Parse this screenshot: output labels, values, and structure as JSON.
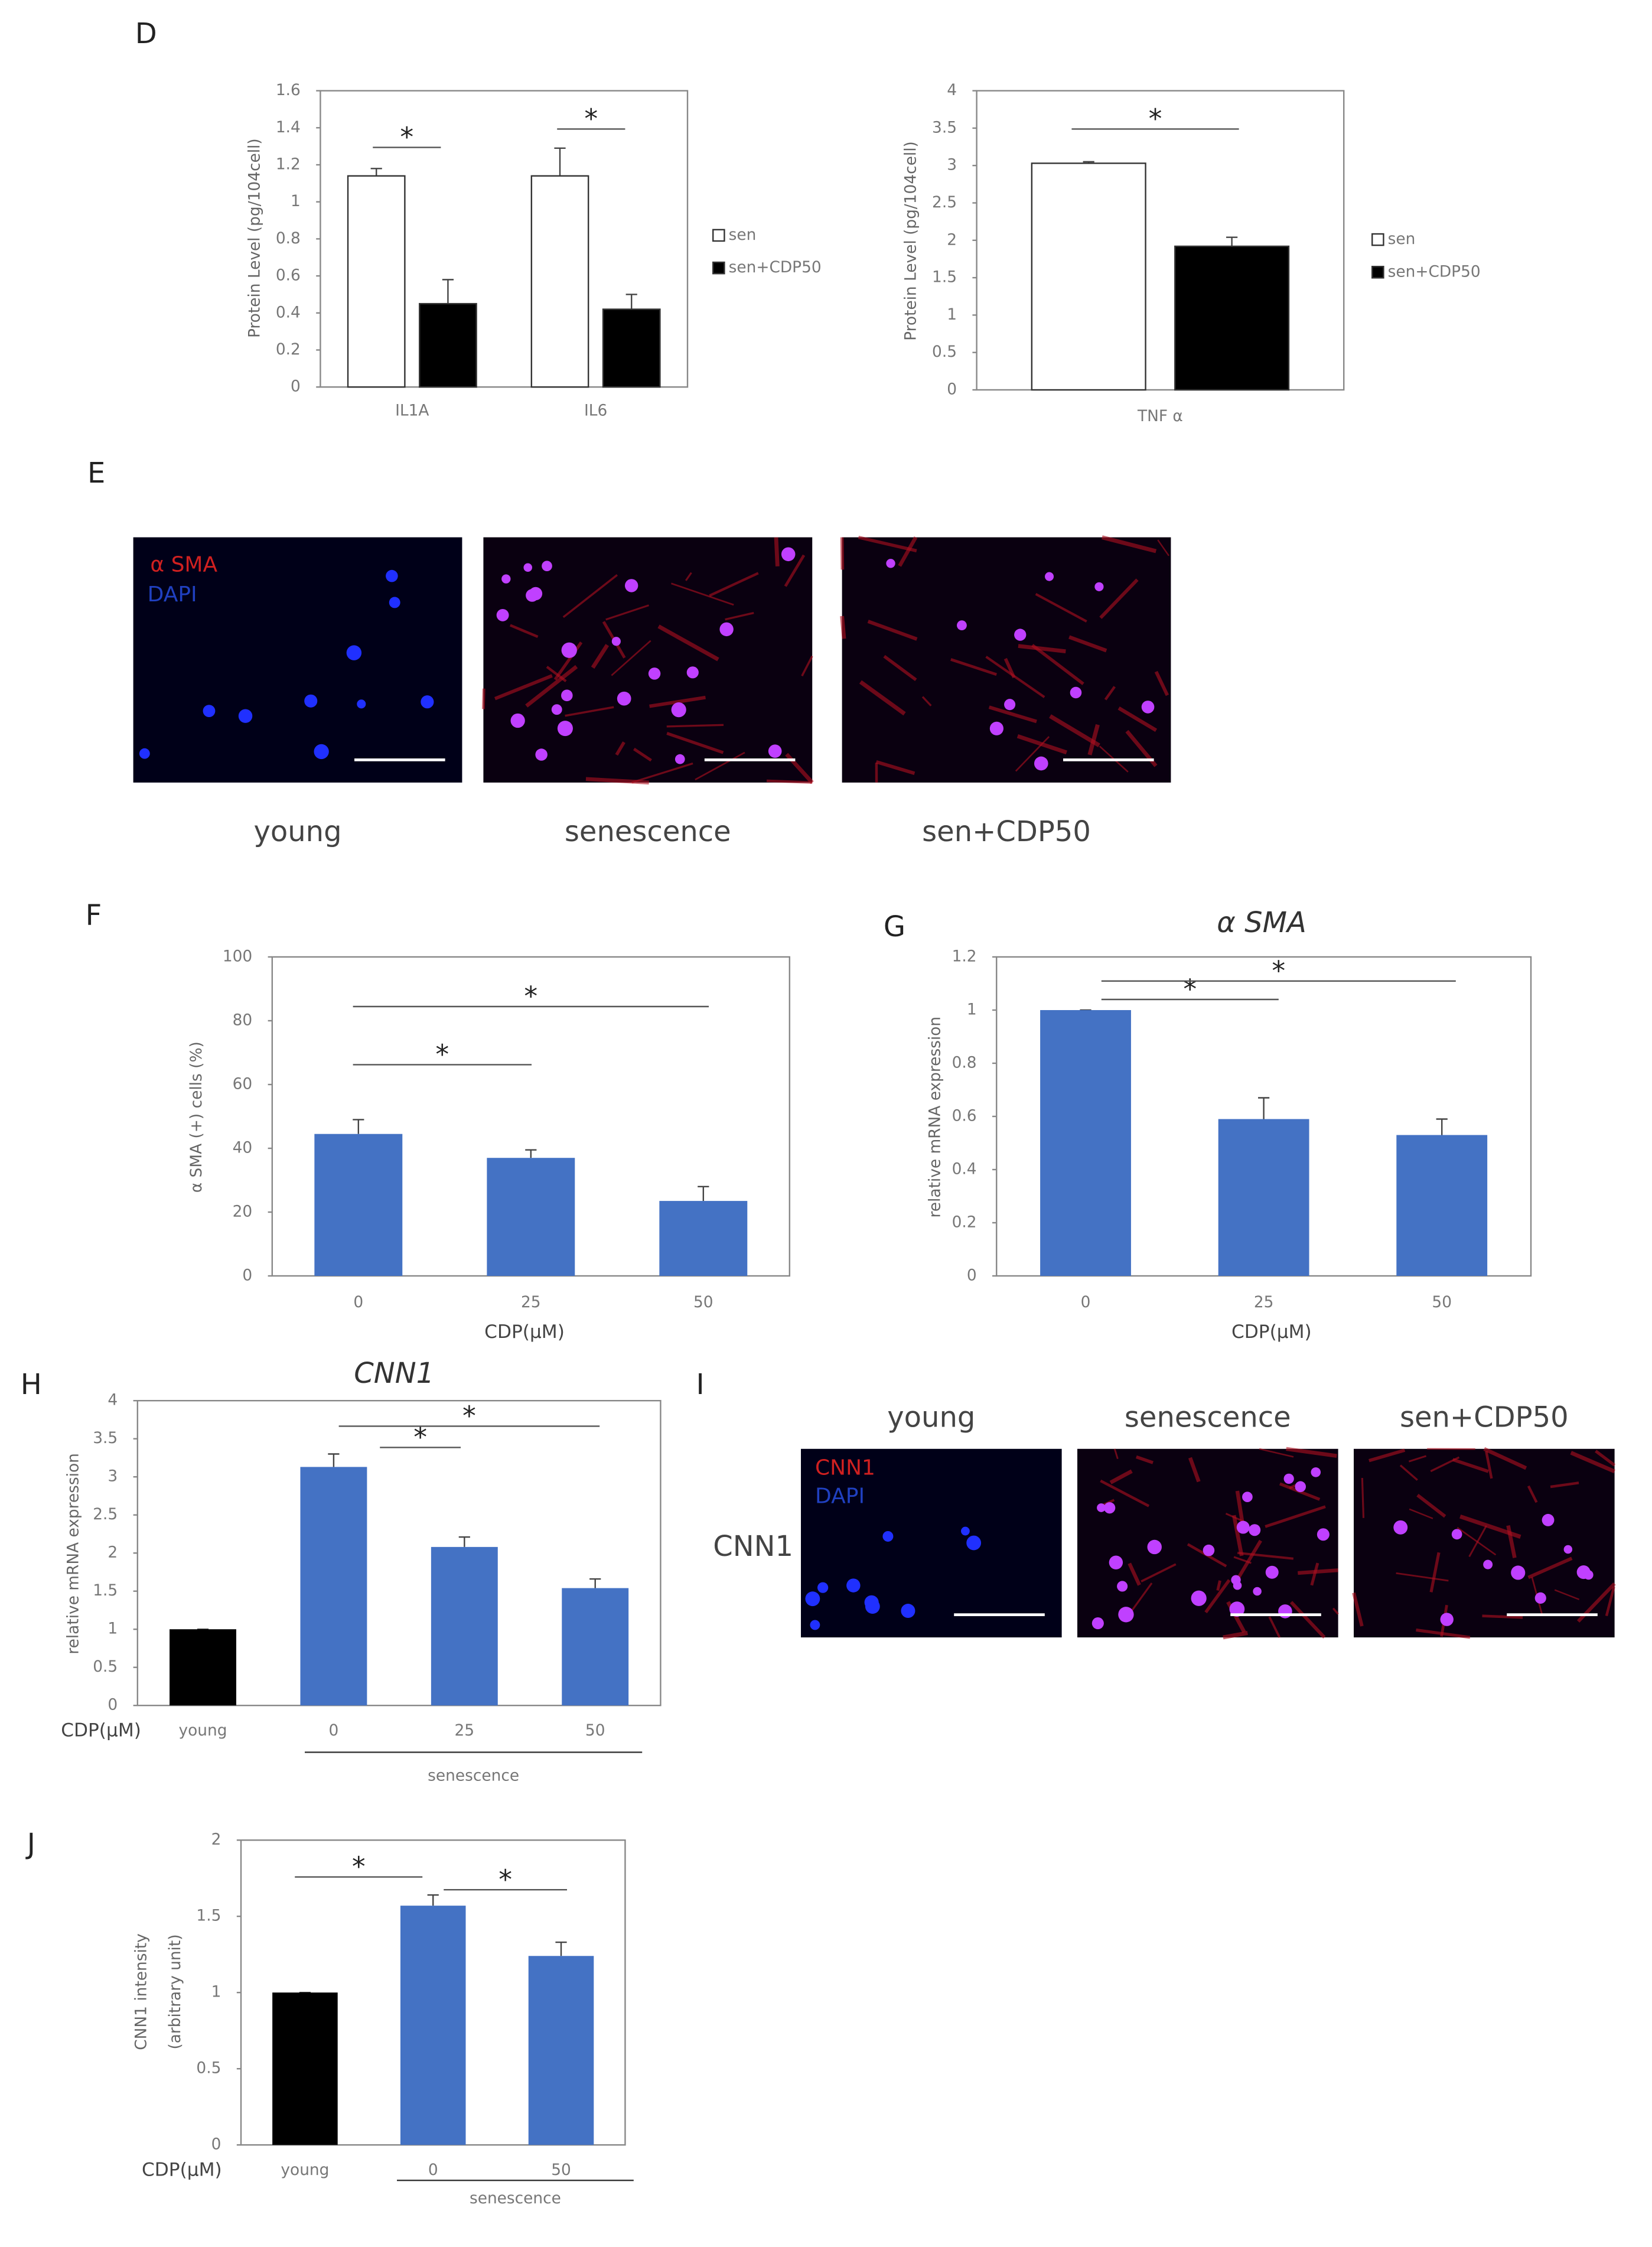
{
  "panels": [
    "D",
    "E",
    "F",
    "G",
    "H",
    "I",
    "J"
  ],
  "images_E": {
    "labels": [
      "young",
      "senescence",
      "sen+CDP50"
    ],
    "stains": [
      "α SMA",
      "DAPI"
    ]
  },
  "images_I": {
    "titles": [
      "young",
      "senescence",
      "sen+CDP50"
    ],
    "row_label": "CNN1",
    "stains": [
      "CNN1",
      "DAPI"
    ]
  },
  "chart_data": [
    {
      "type": "bar",
      "ylabel": "Protein Level (pg/104cell)",
      "categories": [
        "IL1A",
        "IL6"
      ],
      "series": [
        {
          "name": "sen",
          "color": "#ffffff",
          "values": [
            1.14,
            1.14
          ],
          "errors": [
            0.04,
            0.15
          ]
        },
        {
          "name": "sen+CDP50",
          "color": "#000000",
          "values": [
            0.45,
            0.42
          ],
          "errors": [
            0.13,
            0.08
          ]
        }
      ],
      "ylim": [
        0,
        1.6
      ],
      "yticks": [
        0,
        0.2,
        0.4,
        0.6,
        0.8,
        1,
        1.2,
        1.4,
        1.6
      ],
      "annotations": [
        "*",
        "*"
      ]
    },
    {
      "type": "bar",
      "ylabel": "Protein Level (pg/104cell)",
      "categories": [
        "TNF α"
      ],
      "series": [
        {
          "name": "sen",
          "color": "#ffffff",
          "values": [
            3.03
          ],
          "errors": [
            0.02
          ]
        },
        {
          "name": "sen+CDP50",
          "color": "#000000",
          "values": [
            1.92
          ],
          "errors": [
            0.12
          ]
        }
      ],
      "ylim": [
        0,
        4
      ],
      "yticks": [
        0,
        0.5,
        1,
        1.5,
        2,
        2.5,
        3,
        3.5,
        4
      ],
      "annotations": [
        "*"
      ]
    },
    {
      "type": "bar",
      "ylabel": "α SMA (+) cells (%)",
      "xlabel": "CDP(μM)",
      "categories": [
        "0",
        "25",
        "50"
      ],
      "values": [
        44.5,
        37,
        23.5
      ],
      "errors": [
        4.5,
        2.5,
        4.5
      ],
      "colors": [
        "#4472c4",
        "#4472c4",
        "#4472c4"
      ],
      "ylim": [
        0,
        100
      ],
      "yticks": [
        0,
        20,
        40,
        60,
        80,
        100
      ],
      "annotations": [
        "*",
        "*"
      ]
    },
    {
      "type": "bar",
      "title": "α SMA",
      "ylabel": "relative mRNA expression",
      "xlabel": "CDP(μM)",
      "categories": [
        "0",
        "25",
        "50"
      ],
      "values": [
        1,
        0.59,
        0.53
      ],
      "errors": [
        0,
        0.08,
        0.06
      ],
      "colors": [
        "#4472c4",
        "#4472c4",
        "#4472c4"
      ],
      "ylim": [
        0,
        1.2
      ],
      "yticks": [
        0,
        0.2,
        0.4,
        0.6,
        0.8,
        1,
        1.2
      ],
      "annotations": [
        "*",
        "*"
      ]
    },
    {
      "type": "bar",
      "title": "CNN1",
      "ylabel": "relative mRNA expression",
      "xlabel": "CDP(μM)",
      "categories": [
        "young",
        "0",
        "25",
        "50"
      ],
      "group_label": "senescence",
      "values": [
        1,
        3.13,
        2.08,
        1.54
      ],
      "errors": [
        0,
        0.17,
        0.13,
        0.12
      ],
      "colors": [
        "#000000",
        "#4472c4",
        "#4472c4",
        "#4472c4"
      ],
      "ylim": [
        0,
        4
      ],
      "yticks": [
        0,
        0.5,
        1,
        1.5,
        2,
        2.5,
        3,
        3.5,
        4
      ],
      "annotations": [
        "*",
        "*"
      ]
    },
    {
      "type": "bar",
      "ylabel": [
        "CNN1 intensity",
        "(arbitrary unit)"
      ],
      "xlabel": "CDP(μM)",
      "categories": [
        "young",
        "0",
        "50"
      ],
      "group_label": "senescence",
      "values": [
        1,
        1.57,
        1.24
      ],
      "errors": [
        0,
        0.07,
        0.09
      ],
      "colors": [
        "#000000",
        "#4472c4",
        "#4472c4"
      ],
      "ylim": [
        0,
        2
      ],
      "yticks": [
        0,
        0.5,
        1,
        1.5,
        2
      ],
      "annotations": [
        "*",
        "*"
      ]
    }
  ]
}
